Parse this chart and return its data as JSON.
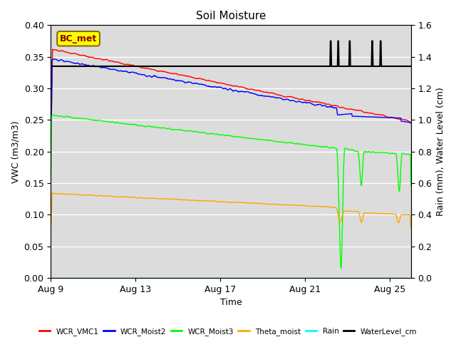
{
  "title": "Soil Moisture",
  "ylabel_left": "VWC (m3/m3)",
  "ylabel_right": "Rain (mm), Water Level (cm)",
  "xlabel": "Time",
  "xlim_days": [
    0,
    17
  ],
  "ylim_left": [
    0.0,
    0.4
  ],
  "ylim_right": [
    0.0,
    1.6
  ],
  "x_ticks_labels": [
    "Aug 9",
    "Aug 13",
    "Aug 17",
    "Aug 21",
    "Aug 25"
  ],
  "x_ticks_days": [
    0,
    4,
    8,
    12,
    16
  ],
  "yticks_left": [
    0.0,
    0.05,
    0.1,
    0.15,
    0.2,
    0.25,
    0.3,
    0.35,
    0.4
  ],
  "yticks_right": [
    0.0,
    0.2,
    0.4,
    0.6,
    0.8,
    1.0,
    1.2,
    1.4,
    1.6
  ],
  "background_color": "#dcdcdc",
  "bc_met_label": "BC_met"
}
